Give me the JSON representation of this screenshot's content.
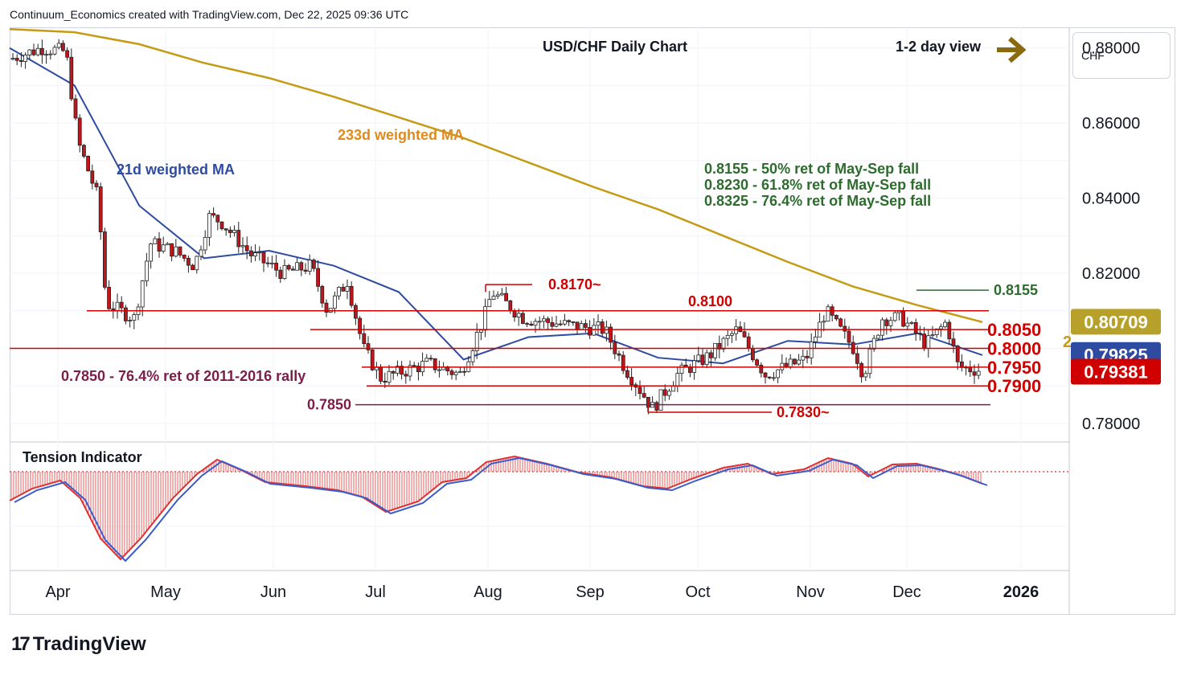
{
  "attribution": "Continuum_Economics created with TradingView.com, Dec 22, 2025 09:36 UTC",
  "currency": "CHF",
  "footer_brand": "TradingView",
  "footer_logo_glyph": "17",
  "chart_data": {
    "type": "candlestick",
    "title": "USD/CHF Daily Chart",
    "view": "1-2 day view",
    "ylim": [
      0.7755,
      0.8855
    ],
    "yticks": [
      "0.88000",
      "0.86000",
      "0.84000",
      "0.82000",
      "0.78000"
    ],
    "yticks_values": [
      0.88,
      0.86,
      0.84,
      0.82,
      0.78
    ],
    "xticks": [
      "Apr",
      "May",
      "Jun",
      "Jul",
      "Aug",
      "Sep",
      "Oct",
      "Nov",
      "Dec",
      "2026"
    ],
    "grid": true,
    "price_tags": [
      {
        "label": "0.80709",
        "value": 0.80709,
        "color": "#b8a12a",
        "text_color": "#ffffff"
      },
      {
        "label": "0.79825",
        "value": 0.79825,
        "color": "#2d4ba0",
        "text_color": "#ffffff"
      },
      {
        "label": "0.79381",
        "value": 0.79381,
        "color": "#d10000",
        "text_color": "#ffffff"
      }
    ],
    "ma_labels": {
      "ma233": "233d weighted MA",
      "ma21": "21d weighted MA"
    },
    "annotations_green": [
      "0.8155 - 50% ret of May-Sep fall",
      "0.8230 - 61.8% ret of May-Sep fall",
      "0.8325 - 76.4% ret of May-Sep fall"
    ],
    "left_note": "0.7850 - 76.4% ret of 2011-2016 rally",
    "levels": [
      {
        "label": "0.8170~",
        "value": 0.817
      },
      {
        "label": "0.8155",
        "value": 0.8155
      },
      {
        "label": "0.8100",
        "value": 0.81
      },
      {
        "label": "0.8050",
        "value": 0.805
      },
      {
        "label": "0.8000",
        "value": 0.8
      },
      {
        "label": "0.7950",
        "value": 0.795
      },
      {
        "label": "0.7900",
        "value": 0.79
      },
      {
        "label": "0.7850",
        "value": 0.785
      },
      {
        "label": "0.7830~",
        "value": 0.783
      }
    ],
    "partial_label": "2",
    "indicator_title": "Tension Indicator",
    "series": [
      {
        "name": "233d weighted MA",
        "color": "#c59b16",
        "values": [
          0.885,
          0.8842,
          0.881,
          0.876,
          0.872,
          0.867,
          0.8615,
          0.856,
          0.8495,
          0.843,
          0.837,
          0.83,
          0.823,
          0.8165,
          0.8115,
          0.807
        ]
      },
      {
        "name": "21d weighted MA",
        "color": "#2d4ba0",
        "values": [
          0.88,
          0.87,
          0.838,
          0.824,
          0.826,
          0.822,
          0.815,
          0.797,
          0.803,
          0.804,
          0.7975,
          0.796,
          0.802,
          0.801,
          0.804,
          0.7982
        ]
      }
    ]
  }
}
